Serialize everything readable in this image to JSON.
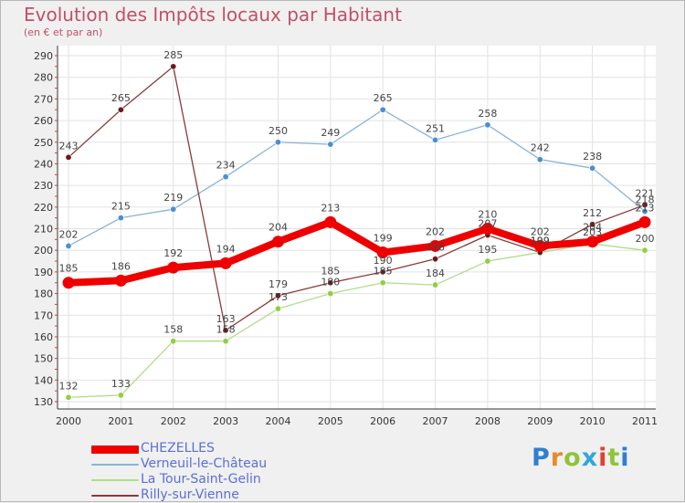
{
  "header": {
    "title": "Evolution des Impôts locaux par Habitant",
    "subtitle": "(en € et par an)"
  },
  "logo": {
    "text": "Proxiti",
    "letter_colors": [
      "#2f7fd0",
      "#e98a2a",
      "#8fc43a",
      "#2fa8d8",
      "#e0402f",
      "#8fc43a",
      "#2f7fd0"
    ]
  },
  "colors": {
    "plot_bg": "#ffffff",
    "grid": "#e2e2e2",
    "axis": "#333333",
    "tick_text": "#333333",
    "label_text": "#444444"
  },
  "chart_data": {
    "type": "line",
    "title": "Evolution des Impôts locaux par Habitant",
    "subtitle": "(en € et par an)",
    "xlabel": "",
    "ylabel": "",
    "x": [
      "2000",
      "2001",
      "2002",
      "2003",
      "2004",
      "2005",
      "2006",
      "2007",
      "2008",
      "2009",
      "2010",
      "2011"
    ],
    "ylim": [
      130,
      290
    ],
    "yticks": [
      130,
      140,
      150,
      160,
      170,
      180,
      190,
      200,
      210,
      220,
      230,
      240,
      250,
      260,
      270,
      280,
      290
    ],
    "grid": true,
    "legend_position": "bottom-left",
    "series": [
      {
        "name": "CHEZELLES",
        "color": "#ee0000",
        "marker_color": "#ee0000",
        "style": "thick",
        "values": [
          185,
          186,
          192,
          194,
          204,
          213,
          199,
          202,
          210,
          202,
          204,
          213
        ],
        "labels": [
          "185",
          "186",
          "192",
          "194",
          "204",
          "213",
          "199",
          "202",
          "210",
          "202",
          "204",
          "213"
        ]
      },
      {
        "name": "Verneuil-le-Château",
        "color": "#8ab4d8",
        "marker_color": "#4a90d0",
        "style": "thin",
        "values": [
          202,
          215,
          219,
          234,
          250,
          249,
          265,
          251,
          258,
          242,
          238,
          218
        ],
        "labels": [
          "202",
          "215",
          "219",
          "234",
          "250",
          "249",
          "265",
          "251",
          "258",
          "242",
          "238",
          "218"
        ]
      },
      {
        "name": "La Tour-Saint-Gelin",
        "color": "#b0dc8a",
        "marker_color": "#8fd040",
        "style": "thin",
        "values": [
          132,
          133,
          158,
          158,
          173,
          180,
          185,
          184,
          195,
          199,
          203,
          200
        ],
        "labels": [
          "132",
          "133",
          "158",
          "158",
          "173",
          "180",
          "185",
          "184",
          "195",
          "199",
          "203",
          "200"
        ]
      },
      {
        "name": "Rilly-sur-Vienne",
        "color": "#8a3a3a",
        "marker_color": "#6a1a1a",
        "style": "thin",
        "values": [
          243,
          265,
          285,
          163,
          179,
          185,
          190,
          196,
          207,
          199,
          212,
          221
        ],
        "labels": [
          "243",
          "265",
          "285",
          "163",
          "179",
          "185",
          "190",
          "196",
          "207",
          "199",
          "212",
          "221"
        ]
      }
    ]
  }
}
